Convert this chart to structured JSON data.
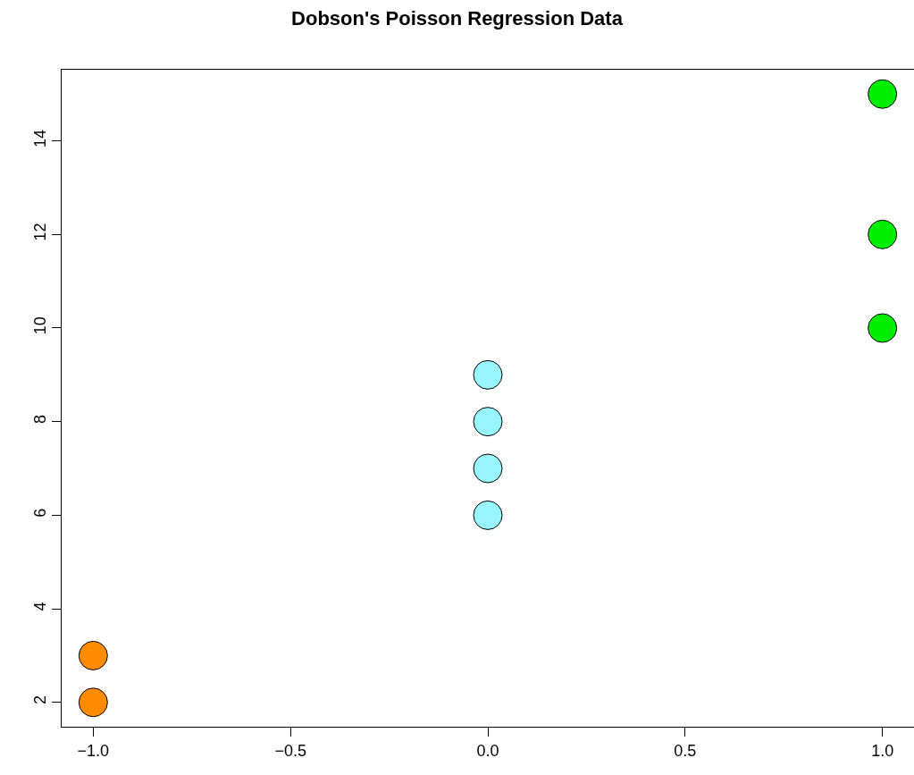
{
  "chart_data": {
    "type": "scatter",
    "title": "Dobson's Poisson Regression Data",
    "series": [
      {
        "color": "#ff8c00",
        "x": [
          -1,
          -1
        ],
        "values": [
          2,
          3
        ]
      },
      {
        "color": "#98f5ff",
        "x": [
          0,
          0,
          0,
          0
        ],
        "values": [
          6,
          7,
          8,
          9
        ]
      },
      {
        "color": "#00ee00",
        "x": [
          1,
          1,
          1
        ],
        "values": [
          10,
          12,
          15
        ]
      }
    ],
    "xlim": [
      -1.08,
      1.08
    ],
    "ylim": [
      1.48,
      15.52
    ],
    "xticks": [
      {
        "value": -1,
        "label": "−1.0"
      },
      {
        "value": -0.5,
        "label": "−0.5"
      },
      {
        "value": 0,
        "label": "0.0"
      },
      {
        "value": 0.5,
        "label": "0.5"
      },
      {
        "value": 1,
        "label": "1.0"
      }
    ],
    "yticks": [
      2,
      4,
      6,
      8,
      10,
      12,
      14
    ],
    "grid": false,
    "marker": "circle"
  }
}
